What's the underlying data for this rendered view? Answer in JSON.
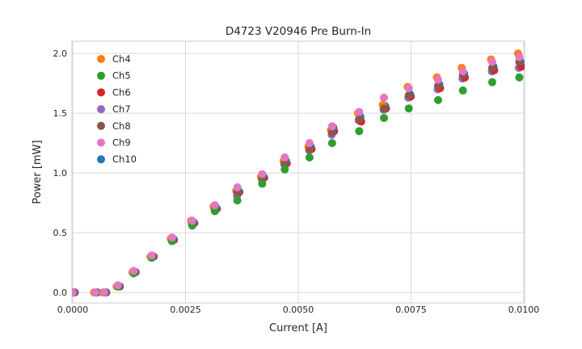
{
  "chart_data": {
    "type": "scatter",
    "title": "D4723 V20946 Pre Burn-In",
    "xlabel": "Current [A]",
    "ylabel": "Power [mW]",
    "grid": true,
    "legend_position": "upper-left",
    "xlim": [
      0.0,
      0.0101
    ],
    "ylim": [
      -0.09,
      2.1
    ],
    "xticks": {
      "values": [
        0.0,
        0.0025,
        0.005,
        0.0075,
        0.01
      ],
      "labels": [
        "0.0000",
        "0.0025",
        "0.0050",
        "0.0075",
        "0.0100"
      ]
    },
    "yticks": {
      "values": [
        0.0,
        0.5,
        1.0,
        1.5,
        2.0
      ],
      "labels": [
        "0.0",
        "0.5",
        "1.0",
        "1.5",
        "2.0"
      ]
    },
    "x": [
      0.0,
      0.0005,
      0.0007,
      0.001,
      0.00135,
      0.00175,
      0.0022,
      0.00265,
      0.00315,
      0.00365,
      0.0042,
      0.0047,
      0.00525,
      0.00575,
      0.00635,
      0.0069,
      0.00745,
      0.0081,
      0.00865,
      0.0093,
      0.0099
    ],
    "series": [
      {
        "name": "Ch4",
        "color": "#ff7f0e",
        "values": [
          0.0,
          0.0,
          0.0,
          0.05,
          0.17,
          0.3,
          0.45,
          0.6,
          0.72,
          0.85,
          0.97,
          1.1,
          1.22,
          1.36,
          1.5,
          1.57,
          1.72,
          1.8,
          1.88,
          1.95,
          2.0
        ]
      },
      {
        "name": "Ch5",
        "color": "#2ca02c",
        "values": [
          0.0,
          0.0,
          0.0,
          0.05,
          0.16,
          0.29,
          0.43,
          0.56,
          0.68,
          0.77,
          0.91,
          1.03,
          1.13,
          1.25,
          1.35,
          1.46,
          1.54,
          1.61,
          1.69,
          1.76,
          1.8
        ]
      },
      {
        "name": "Ch6",
        "color": "#d62728",
        "values": [
          0.0,
          0.0,
          0.0,
          0.05,
          0.17,
          0.3,
          0.44,
          0.58,
          0.7,
          0.84,
          0.96,
          1.08,
          1.2,
          1.35,
          1.43,
          1.54,
          1.64,
          1.71,
          1.8,
          1.86,
          1.89
        ]
      },
      {
        "name": "Ch7",
        "color": "#9467bd",
        "values": [
          0.0,
          0.0,
          0.0,
          0.05,
          0.17,
          0.3,
          0.44,
          0.57,
          0.7,
          0.81,
          0.95,
          1.07,
          1.19,
          1.32,
          1.44,
          1.53,
          1.63,
          1.7,
          1.79,
          1.85,
          1.88
        ]
      },
      {
        "name": "Ch8",
        "color": "#8c564b",
        "values": [
          0.0,
          0.0,
          0.0,
          0.05,
          0.17,
          0.3,
          0.44,
          0.58,
          0.71,
          0.84,
          0.96,
          1.08,
          1.2,
          1.34,
          1.45,
          1.54,
          1.65,
          1.73,
          1.82,
          1.88,
          1.93
        ]
      },
      {
        "name": "Ch9",
        "color": "#e377c2",
        "values": [
          0.0,
          0.0,
          0.0,
          0.06,
          0.18,
          0.31,
          0.46,
          0.6,
          0.73,
          0.88,
          0.99,
          1.13,
          1.25,
          1.39,
          1.51,
          1.63,
          1.71,
          1.78,
          1.85,
          1.93,
          1.97
        ]
      },
      {
        "name": "Ch10",
        "color": "#1f77b4",
        "values": [
          0.0,
          0.0,
          0.0,
          0.05,
          0.17,
          0.3,
          0.45,
          0.59,
          0.71,
          0.85,
          0.97,
          1.1,
          1.22,
          1.38,
          1.47,
          1.56,
          1.66,
          1.74,
          1.83,
          1.89,
          1.93
        ]
      }
    ],
    "colors": {
      "text": "#262626",
      "gridline": "#d8d8d8",
      "spine": "#cccccc",
      "background": "#ffffff"
    }
  }
}
